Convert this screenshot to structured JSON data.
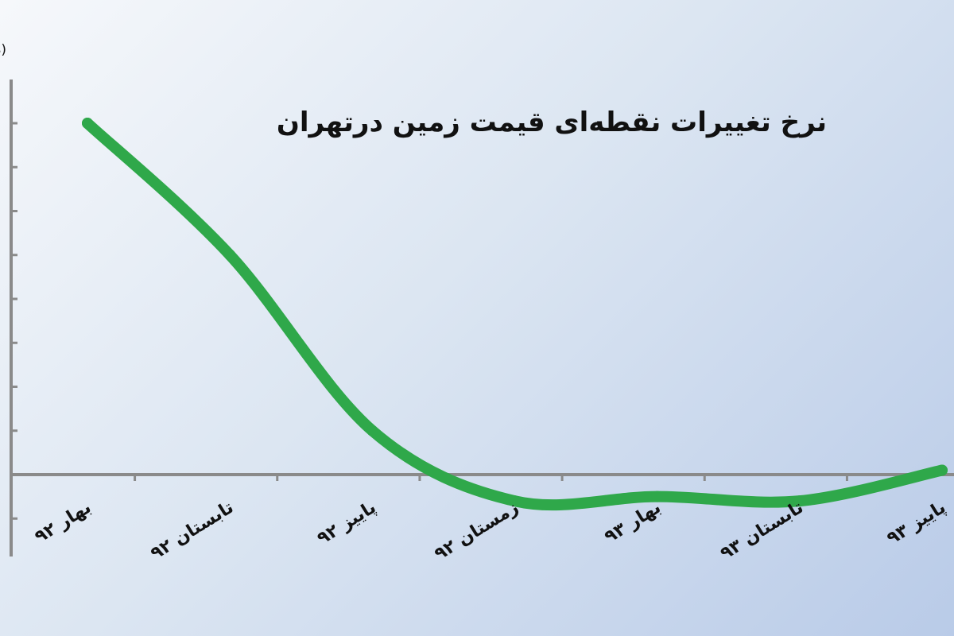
{
  "chart_data": {
    "type": "line",
    "title": "نرخ تغییرات نقطه‌ای قیمت زمین درتهران",
    "ylabel": "(درصد",
    "xlabel": "",
    "categories": [
      "بهار ۹۲",
      "تابستان ۹۲",
      "پاییز ۹۲",
      "زمستان ۹۲",
      "بهار ۹۳",
      "تابستان ۹۳",
      "پاییز ۹۳"
    ],
    "values": [
      8,
      5,
      1,
      -0.6,
      -0.5,
      -0.6,
      0.1
    ],
    "ylim": [
      -2,
      9
    ],
    "grid": false,
    "legend": "none",
    "colors": {
      "line": "#2fa84a",
      "axis": "#8a8a8a",
      "text": "#111111"
    }
  }
}
